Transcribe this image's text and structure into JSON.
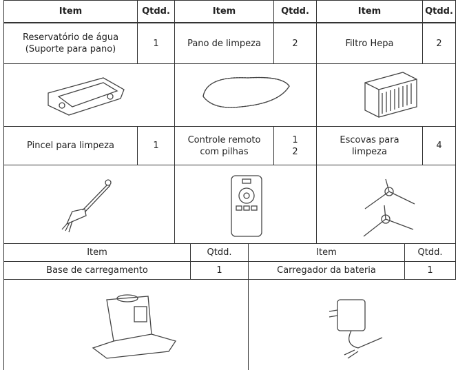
{
  "table1": {
    "header": [
      "Item",
      "Qtdd.",
      "Item",
      "Qtdd.",
      "Item",
      "Qtdd."
    ],
    "rows": [
      [
        "Reservatório de água\n(Suporte para pano)",
        "1",
        "Pano de limpeza",
        "2",
        "Filtro Hepa",
        "2"
      ],
      [
        "Pincel para limpeza",
        "1",
        "Controle remoto\ncom pilhas",
        "1\n2",
        "Escovas para\nlimpeza",
        "4"
      ]
    ]
  },
  "table2": {
    "header": [
      "Item",
      "Qtdd.",
      "Item",
      "Qtdd."
    ],
    "rows": [
      [
        "Base de carregamento",
        "1",
        "Carregador da bateria",
        "1"
      ]
    ]
  }
}
